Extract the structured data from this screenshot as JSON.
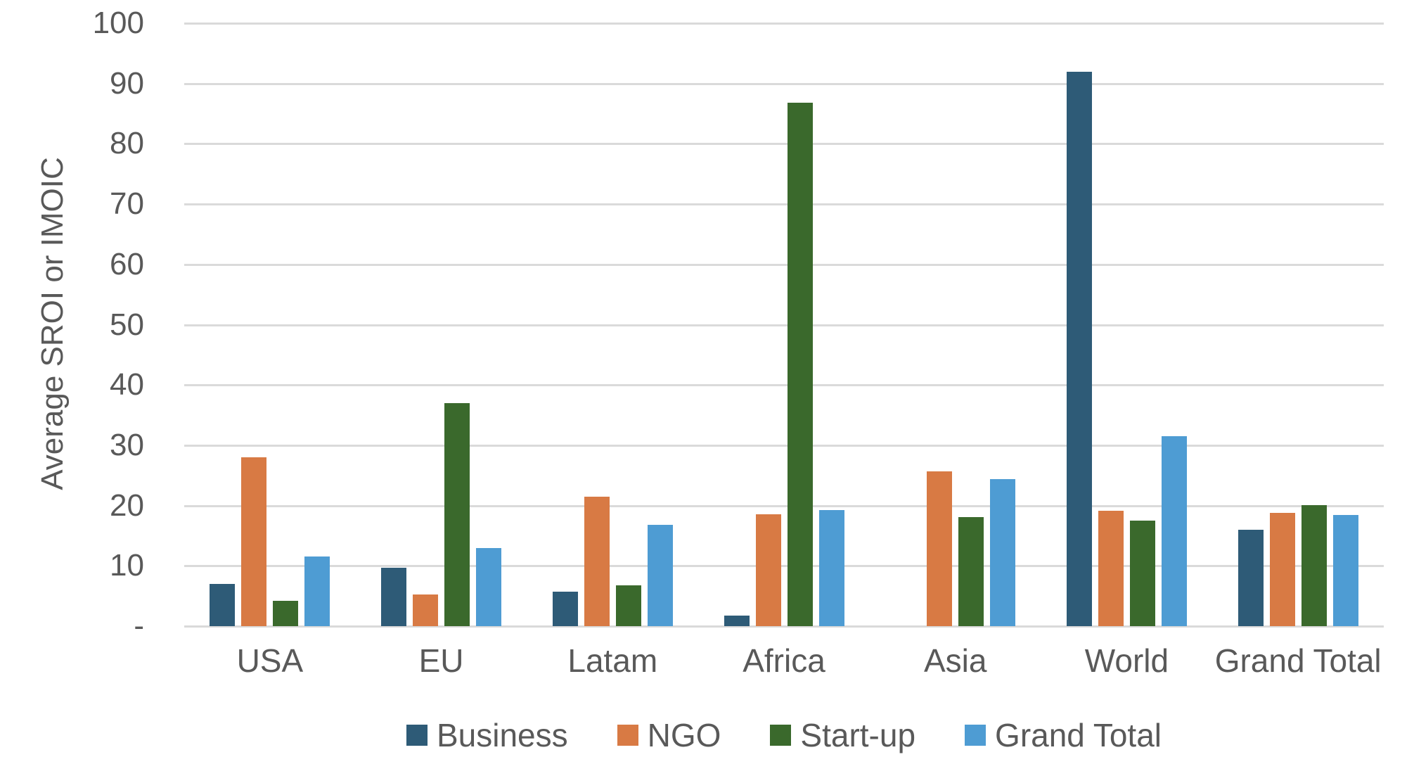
{
  "chart_data": {
    "type": "bar",
    "title": "",
    "xlabel": "",
    "ylabel": "Average SROI or IMOIC",
    "ylim": [
      0,
      100
    ],
    "grid": "horizontal",
    "legend_position": "bottom",
    "yticks": [
      {
        "value": 100,
        "label": "100"
      },
      {
        "value": 90,
        "label": "90"
      },
      {
        "value": 80,
        "label": "80"
      },
      {
        "value": 70,
        "label": "70"
      },
      {
        "value": 60,
        "label": "60"
      },
      {
        "value": 50,
        "label": "50"
      },
      {
        "value": 40,
        "label": "40"
      },
      {
        "value": 30,
        "label": "30"
      },
      {
        "value": 20,
        "label": "20"
      },
      {
        "value": 10,
        "label": "10"
      },
      {
        "value": 0,
        "label": "-"
      }
    ],
    "categories": [
      "USA",
      "EU",
      "Latam",
      "Africa",
      "Asia",
      "World",
      "Grand Total"
    ],
    "series": [
      {
        "name": "Business",
        "color": "#2E5B77",
        "values": [
          7,
          9.7,
          5.7,
          1.7,
          0,
          92,
          16
        ]
      },
      {
        "name": "NGO",
        "color": "#D87A44",
        "values": [
          28,
          5.2,
          21.5,
          18.5,
          25.7,
          19.1,
          18.8
        ]
      },
      {
        "name": "Start-up",
        "color": "#3A692C",
        "values": [
          4.2,
          37,
          6.8,
          86.8,
          18.1,
          17.5,
          20.1
        ]
      },
      {
        "name": "Grand Total",
        "color": "#4E9CD3",
        "values": [
          11.5,
          13,
          16.8,
          19.3,
          24.4,
          31.5,
          18.4
        ]
      }
    ],
    "colors": {
      "grid": "#DADADA",
      "text": "#595959",
      "background": "#FFFFFF"
    }
  }
}
